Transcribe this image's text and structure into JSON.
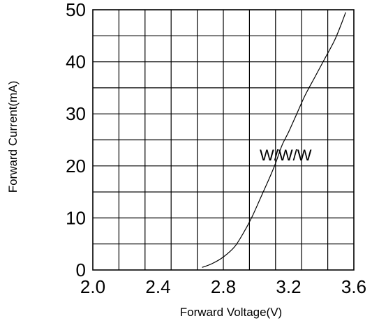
{
  "chart_data": {
    "type": "line",
    "title": "",
    "xlabel": "Forward Voltage(V)",
    "ylabel": "Forward Current(mA)",
    "xlim": [
      2.0,
      3.6
    ],
    "ylim": [
      0,
      50
    ],
    "x_ticks": [
      "2.0",
      "2.4",
      "2.8",
      "3.2",
      "3.6"
    ],
    "y_ticks": [
      "0",
      "10",
      "20",
      "30",
      "40",
      "50"
    ],
    "grid": true,
    "colors": {
      "line": "#000000",
      "grid": "#000000",
      "background": "#ffffff"
    },
    "series_label": "W/W/W",
    "series": [
      {
        "name": "W/W/W",
        "x": [
          2.67,
          2.73,
          2.8,
          2.87,
          2.93,
          2.98,
          3.03,
          3.08,
          3.12,
          3.16,
          3.2,
          3.25,
          3.3,
          3.36,
          3.42,
          3.48,
          3.52,
          3.55
        ],
        "y": [
          0.5,
          1.2,
          2.5,
          4.5,
          7.5,
          10.5,
          14,
          17.5,
          20.5,
          24,
          26.5,
          30,
          33.5,
          37,
          40.5,
          44,
          47,
          49.5
        ]
      }
    ]
  }
}
